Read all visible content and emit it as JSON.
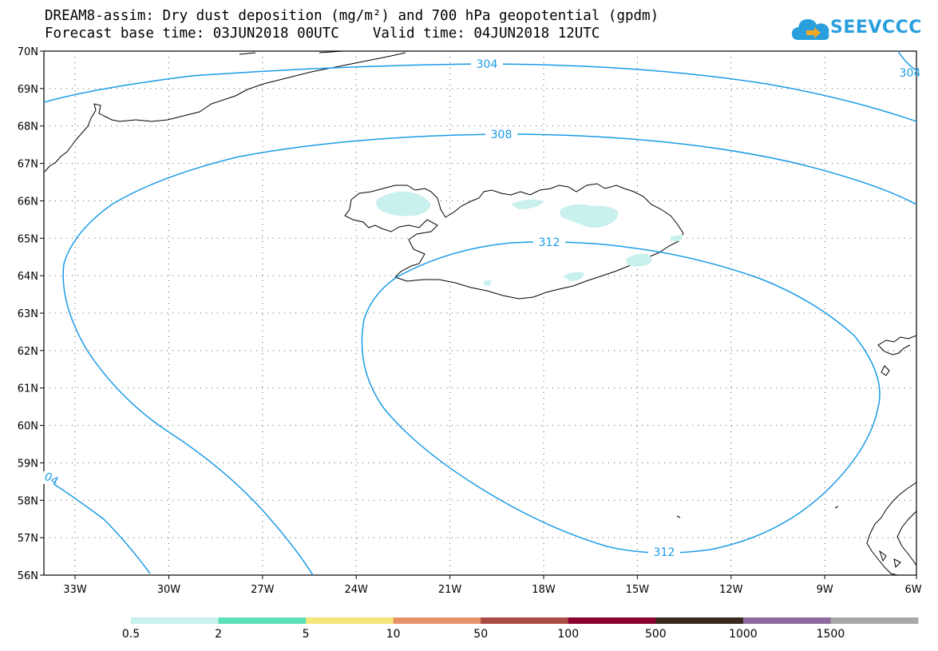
{
  "header": {
    "title_line1": "DREAM8-assim: Dry dust deposition (mg/m²) and 700 hPa geopotential (gpdm)",
    "title_line2": "Forecast base time: 03JUN2018 00UTC    Valid time: 04JUN2018 12UTC",
    "logo_text": "SEEVCCC"
  },
  "map": {
    "lat_labels": [
      "70N",
      "69N",
      "68N",
      "67N",
      "66N",
      "65N",
      "64N",
      "63N",
      "62N",
      "61N",
      "60N",
      "59N",
      "58N",
      "57N",
      "56N"
    ],
    "lon_labels": [
      "33W",
      "30W",
      "27W",
      "24W",
      "21W",
      "18W",
      "15W",
      "12W",
      "9W",
      "6W"
    ],
    "contour_labels": [
      "304",
      "308",
      "312",
      "312",
      "04",
      "304"
    ],
    "contour_color": "#1a9be6"
  },
  "colorbar": {
    "labels": [
      "0.5",
      "2",
      "5",
      "10",
      "50",
      "100",
      "500",
      "1000",
      "1500"
    ],
    "colors": [
      "#c8f0ec",
      "#5ce0b8",
      "#f5e67a",
      "#e8926a",
      "#a84c44",
      "#8c0030",
      "#3a2a1e",
      "#8e6aa0",
      "#a8a8a8"
    ]
  }
}
